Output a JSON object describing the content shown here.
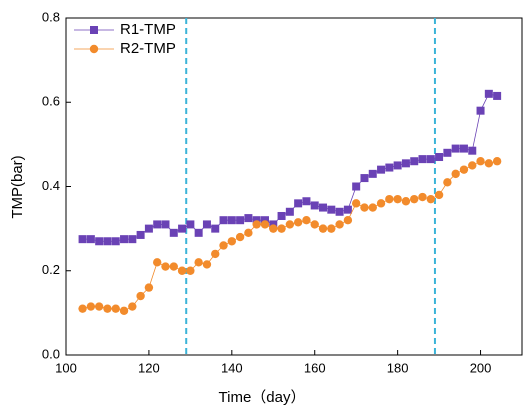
{
  "chart_data": {
    "type": "line",
    "xlabel": "Time（day）",
    "ylabel": "TMP(bar)",
    "x": [
      104,
      106,
      108,
      110,
      112,
      114,
      116,
      118,
      120,
      122,
      124,
      126,
      128,
      130,
      132,
      134,
      136,
      138,
      140,
      142,
      144,
      146,
      148,
      150,
      152,
      154,
      156,
      158,
      160,
      162,
      164,
      166,
      168,
      170,
      172,
      174,
      176,
      178,
      180,
      182,
      184,
      186,
      188,
      190,
      192,
      194,
      196,
      198,
      200,
      202,
      204
    ],
    "series": [
      {
        "name": "R1-TMP",
        "color": "#6a42b5",
        "marker": "square",
        "values": [
          0.275,
          0.275,
          0.27,
          0.27,
          0.27,
          0.275,
          0.275,
          0.285,
          0.3,
          0.31,
          0.31,
          0.29,
          0.3,
          0.31,
          0.29,
          0.31,
          0.3,
          0.32,
          0.32,
          0.32,
          0.325,
          0.32,
          0.32,
          0.31,
          0.33,
          0.34,
          0.36,
          0.365,
          0.355,
          0.35,
          0.345,
          0.34,
          0.345,
          0.4,
          0.42,
          0.43,
          0.44,
          0.445,
          0.45,
          0.455,
          0.46,
          0.465,
          0.465,
          0.47,
          0.48,
          0.49,
          0.49,
          0.485,
          0.58,
          0.62,
          0.615
        ]
      },
      {
        "name": "R2-TMP",
        "color": "#f28b2c",
        "marker": "circle",
        "values": [
          0.11,
          0.115,
          0.115,
          0.11,
          0.11,
          0.105,
          0.115,
          0.14,
          0.16,
          0.22,
          0.21,
          0.21,
          0.2,
          0.2,
          0.22,
          0.215,
          0.24,
          0.26,
          0.27,
          0.28,
          0.29,
          0.31,
          0.31,
          0.3,
          0.3,
          0.31,
          0.315,
          0.32,
          0.31,
          0.3,
          0.3,
          0.31,
          0.32,
          0.36,
          0.35,
          0.35,
          0.36,
          0.37,
          0.37,
          0.365,
          0.37,
          0.375,
          0.37,
          0.38,
          0.41,
          0.43,
          0.44,
          0.45,
          0.46,
          0.455,
          0.46
        ]
      }
    ],
    "vlines": [
      129,
      189
    ],
    "vline_color": "#3bb4d8",
    "xlim": [
      100,
      210
    ],
    "xticks": [
      100,
      120,
      140,
      160,
      180,
      200
    ],
    "ylim": [
      0,
      0.8
    ],
    "yticks": [
      {
        "value": 0,
        "label": "0.0"
      },
      0.2,
      0.4,
      0.6,
      0.8
    ],
    "legend": "upper-left"
  }
}
